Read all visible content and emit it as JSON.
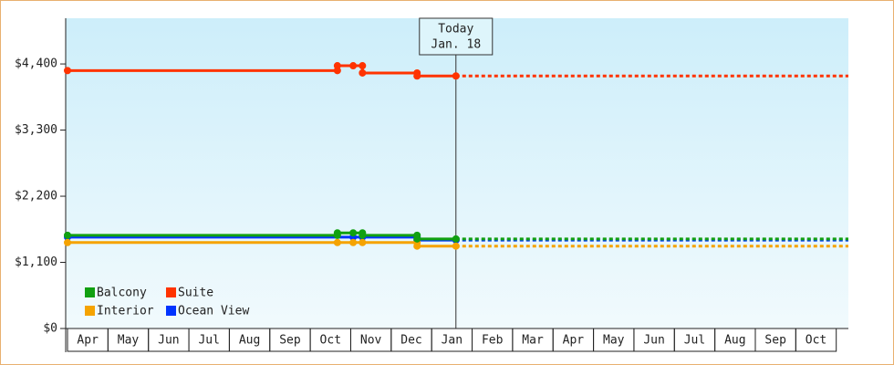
{
  "chart_data": {
    "type": "line",
    "xlim": [
      0,
      19.3
    ],
    "ylim": [
      0,
      5160
    ],
    "xticks": [
      {
        "value": 0.5,
        "label": "Apr"
      },
      {
        "value": 1.5,
        "label": "May"
      },
      {
        "value": 2.5,
        "label": "Jun"
      },
      {
        "value": 3.5,
        "label": "Jul"
      },
      {
        "value": 4.5,
        "label": "Aug"
      },
      {
        "value": 5.5,
        "label": "Sep"
      },
      {
        "value": 6.5,
        "label": "Oct"
      },
      {
        "value": 7.5,
        "label": "Nov"
      },
      {
        "value": 8.5,
        "label": "Dec"
      },
      {
        "value": 9.5,
        "label": "Jan"
      },
      {
        "value": 10.5,
        "label": "Feb"
      },
      {
        "value": 11.5,
        "label": "Mar"
      },
      {
        "value": 12.5,
        "label": "Apr"
      },
      {
        "value": 13.5,
        "label": "May"
      },
      {
        "value": 14.5,
        "label": "Jun"
      },
      {
        "value": 15.5,
        "label": "Jul"
      },
      {
        "value": 16.5,
        "label": "Aug"
      },
      {
        "value": 17.5,
        "label": "Sep"
      },
      {
        "value": 18.5,
        "label": "Oct"
      }
    ],
    "yticks": [
      {
        "value": 0,
        "label": "$0"
      },
      {
        "value": 1100,
        "label": "$1,100"
      },
      {
        "value": 2200,
        "label": "$2,200"
      },
      {
        "value": 3300,
        "label": "$3,300"
      },
      {
        "value": 4400,
        "label": "$4,400"
      }
    ],
    "today": {
      "x": 9.6,
      "label": [
        "Today",
        "Jan. 18"
      ]
    },
    "series": [
      {
        "name": "Balcony",
        "color": "#11a011",
        "x": [
          0,
          6.67,
          6.67,
          7.06,
          7.29,
          7.29,
          8.64,
          8.64,
          9.6
        ],
        "values": [
          1550,
          1550,
          1590,
          1590,
          1590,
          1550,
          1550,
          1490,
          1490
        ]
      },
      {
        "name": "Suite",
        "color": "#ff3300",
        "x": [
          0,
          6.67,
          6.67,
          7.06,
          7.29,
          7.29,
          8.64,
          8.64,
          9.6
        ],
        "values": [
          4290,
          4290,
          4370,
          4370,
          4370,
          4250,
          4250,
          4200,
          4200
        ]
      },
      {
        "name": "Interior",
        "color": "#f5a300",
        "x": [
          0,
          6.67,
          7.06,
          7.29,
          8.64,
          8.64,
          9.6
        ],
        "values": [
          1430,
          1430,
          1430,
          1430,
          1430,
          1370,
          1370
        ]
      },
      {
        "name": "Ocean View",
        "color": "#0033ff",
        "x": [
          0,
          7.06,
          7.29,
          8.64,
          8.64,
          9.6
        ],
        "values": [
          1520,
          1520,
          1520,
          1520,
          1470,
          1470
        ]
      }
    ]
  }
}
